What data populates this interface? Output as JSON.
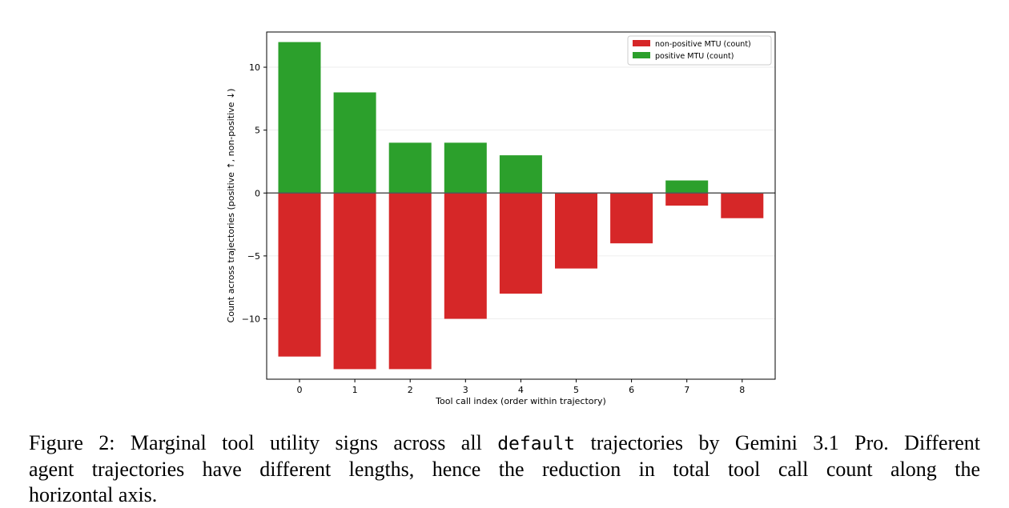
{
  "chart_data": {
    "type": "bar",
    "stacked_diverging": true,
    "categories": [
      "0",
      "1",
      "2",
      "3",
      "4",
      "5",
      "6",
      "7",
      "8"
    ],
    "series": [
      {
        "name": "non-positive MTU (count)",
        "values": [
          -13,
          -14,
          -14,
          -10,
          -8,
          -6,
          -4,
          -1,
          -2
        ],
        "color": "#d62728"
      },
      {
        "name": "positive MTU (count)",
        "values": [
          12,
          8,
          4,
          4,
          3,
          0,
          0,
          1,
          0
        ],
        "color": "#2ca02c"
      }
    ],
    "xlabel": "Tool call index (order within trajectory)",
    "ylabel": "Count across trajectories (positive ↑, non-positive ↓)",
    "ylim": [
      -14.8,
      12.8
    ],
    "yticks": [
      -10,
      -5,
      0,
      5,
      10
    ],
    "ytick_labels": [
      "−10",
      "−5",
      "0",
      "5",
      "10"
    ],
    "grid": "y",
    "legend": "upper right",
    "zero_line": true
  },
  "caption": {
    "prefix": "Figure 2: Marginal tool utility signs across all ",
    "code": "default",
    "suffix_line1": " trajectories by Gemini 3.1 Pro. Different",
    "line2": "agent trajectories have different lengths, hence the reduction in total tool call count along the",
    "line3": "horizontal axis."
  }
}
